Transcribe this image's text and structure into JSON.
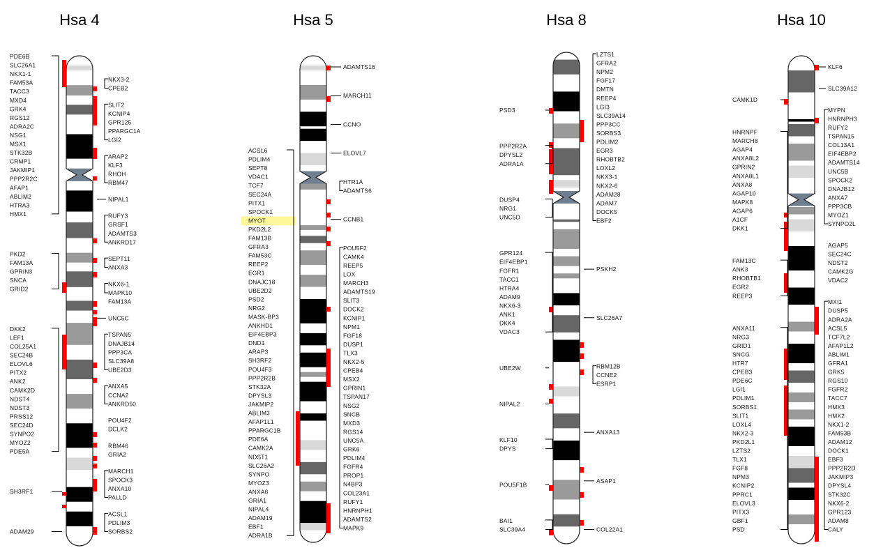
{
  "chromosomes": [
    {
      "name": "Hsa 4",
      "colors": {
        "hl": "#fff799",
        "mark": "#ff0000"
      },
      "cen": 0.243,
      "bands": [
        [
          0,
          0.02,
          "w"
        ],
        [
          0.02,
          0.03,
          "l"
        ],
        [
          0.03,
          0.06,
          "w"
        ],
        [
          0.06,
          0.081,
          "m"
        ],
        [
          0.081,
          0.1,
          "w"
        ],
        [
          0.1,
          0.12,
          "d"
        ],
        [
          0.12,
          0.16,
          "w"
        ],
        [
          0.16,
          0.21,
          "k"
        ],
        [
          0.21,
          0.23,
          "w"
        ],
        [
          0.23,
          0.25,
          "m"
        ],
        [
          0.25,
          0.275,
          "w"
        ],
        [
          0.275,
          0.318,
          "k"
        ],
        [
          0.318,
          0.34,
          "w"
        ],
        [
          0.34,
          0.372,
          "d"
        ],
        [
          0.372,
          0.402,
          "w"
        ],
        [
          0.402,
          0.422,
          "m"
        ],
        [
          0.422,
          0.44,
          "w"
        ],
        [
          0.44,
          0.472,
          "d"
        ],
        [
          0.472,
          0.5,
          "w"
        ],
        [
          0.5,
          0.52,
          "d"
        ],
        [
          0.52,
          0.545,
          "w"
        ],
        [
          0.545,
          0.59,
          "m"
        ],
        [
          0.59,
          0.62,
          "w"
        ],
        [
          0.62,
          0.66,
          "d"
        ],
        [
          0.66,
          0.69,
          "w"
        ],
        [
          0.69,
          0.72,
          "m"
        ],
        [
          0.72,
          0.75,
          "w"
        ],
        [
          0.75,
          0.8,
          "k"
        ],
        [
          0.8,
          0.82,
          "w"
        ],
        [
          0.82,
          0.845,
          "l"
        ],
        [
          0.845,
          0.88,
          "w"
        ],
        [
          0.88,
          0.91,
          "k"
        ],
        [
          0.91,
          0.93,
          "w"
        ],
        [
          0.93,
          0.96,
          "k"
        ],
        [
          0.96,
          1,
          "w"
        ]
      ],
      "left_labels": [
        "PDE6B",
        "SLC26A1",
        "NKX1-1",
        "FAM53A",
        "TACC3",
        "MXD4",
        "GRK4",
        "RGS12",
        "ADRA2C",
        "NSG1",
        "MSX1",
        "STK32B",
        "CRMP1",
        "JAKMIP1",
        "PPP2R2C",
        "AFAP1",
        "ABLIM2",
        "HTRA3",
        "HMX1",
        "PKD2",
        "FAM13A",
        "GPRIN3",
        "SNCA",
        "GRID2",
        "DKK2",
        "LEF1",
        "COL25A1",
        "SEC24B",
        "ELOVL6",
        "PITX2",
        "ANK2",
        "CAMK2D",
        "NDST4",
        "NDST3",
        "PRSS12",
        "SEC24D",
        "SYNPO2",
        "MYOZ2",
        "PDE5A",
        "SH3RF1",
        "ADAM29"
      ],
      "right_labels": [
        "NKX3-2",
        "CPEB2",
        "SLIT2",
        "KCNIP4",
        "GPR125",
        "PPARGC1A",
        "LGI2",
        "ARAP2",
        "KLF3",
        "RHOH",
        "RBM47",
        "NIPAL1",
        "RUFY3",
        "GRSF1",
        "ADAMTS3",
        "ANKRD17",
        "SEPT11",
        "ANXA3",
        "NKX6-1",
        "MAPK10",
        "FAM13A",
        "UNC5C",
        "TSPAN5",
        "DNAJB14",
        "PPP3CA",
        "SLC39A8",
        "UBE2D3",
        "ANXA5",
        "CCNA2",
        "ANKRD50",
        "POU4F2",
        "DCLK2",
        "RBM46",
        "GRIA2",
        "MARCH1",
        "SPOCK3",
        "ANXA10",
        "PALLD",
        "ACSL1",
        "PDLIM3",
        "SORBS2"
      ]
    },
    {
      "name": "Hsa 5",
      "colors": {
        "hl": "#fff799",
        "mark": "#ff0000"
      },
      "cen": 0.25,
      "bands": [
        [
          0,
          0.02,
          "w"
        ],
        [
          0.02,
          0.03,
          "l"
        ],
        [
          0.03,
          0.06,
          "w"
        ],
        [
          0.06,
          0.09,
          "m"
        ],
        [
          0.09,
          0.115,
          "w"
        ],
        [
          0.115,
          0.145,
          "k"
        ],
        [
          0.145,
          0.15,
          "w"
        ],
        [
          0.15,
          0.175,
          "k"
        ],
        [
          0.175,
          0.2,
          "w"
        ],
        [
          0.2,
          0.225,
          "l"
        ],
        [
          0.225,
          0.255,
          "w"
        ],
        [
          0.255,
          0.275,
          "m"
        ],
        [
          0.275,
          0.31,
          "w"
        ],
        [
          0.31,
          0.348,
          "w"
        ],
        [
          0.348,
          0.358,
          "m"
        ],
        [
          0.358,
          0.37,
          "w"
        ],
        [
          0.37,
          0.385,
          "d"
        ],
        [
          0.385,
          0.4,
          "w"
        ],
        [
          0.4,
          0.43,
          "m"
        ],
        [
          0.43,
          0.45,
          "w"
        ],
        [
          0.45,
          0.475,
          "m"
        ],
        [
          0.475,
          0.5,
          "w"
        ],
        [
          0.5,
          0.55,
          "k"
        ],
        [
          0.55,
          0.57,
          "w"
        ],
        [
          0.57,
          0.595,
          "k"
        ],
        [
          0.595,
          0.61,
          "w"
        ],
        [
          0.61,
          0.64,
          "k"
        ],
        [
          0.64,
          0.65,
          "w"
        ],
        [
          0.65,
          0.66,
          "m"
        ],
        [
          0.66,
          0.67,
          "w"
        ],
        [
          0.67,
          0.71,
          "k"
        ],
        [
          0.71,
          0.735,
          "w"
        ],
        [
          0.735,
          0.75,
          "k"
        ],
        [
          0.75,
          0.79,
          "w"
        ],
        [
          0.79,
          0.81,
          "l"
        ],
        [
          0.81,
          0.835,
          "w"
        ],
        [
          0.835,
          0.86,
          "d"
        ],
        [
          0.86,
          0.875,
          "w"
        ],
        [
          0.875,
          0.895,
          "m"
        ],
        [
          0.895,
          0.915,
          "w"
        ],
        [
          0.915,
          0.96,
          "k"
        ],
        [
          0.96,
          0.975,
          "l"
        ],
        [
          0.975,
          1,
          "w"
        ]
      ],
      "left_labels": [
        "ACSL6",
        "PDLIM4",
        "SEPT8",
        "VDAC1",
        "TCF7",
        "SEC24A",
        "PITX1",
        "SPOCK1",
        "MYOT",
        "PKD2L2",
        "FAM13B",
        "GFRA3",
        "FAM53C",
        "REEP2",
        "EGR1",
        "DNAJC18",
        "UBE2D2",
        "PSD2",
        "NRG2",
        "MASK-BP3",
        "ANKHD1",
        "EIF4EBP3",
        "DND1",
        "ARAP3",
        "SH3RF2",
        "POU4F3",
        "PPP2R2B",
        "STK32A",
        "DPYSL3",
        "JAKMIP2",
        "ABLIM3",
        "AFAP1L1",
        "PPARGC1B",
        "PDE6A",
        "CAMK2A",
        "NDST1",
        "SLC26A2",
        "SYNPO",
        "MYOZ3",
        "ANXA6",
        "GRIA1",
        "NIPAL4",
        "ADAM19",
        "EBF1",
        "ADRA1B"
      ],
      "right_labels": [
        "ADAMTS16",
        "MARCH11",
        "CCNO",
        "ELOVL7",
        "HTR1A",
        "ADAMTS6",
        "CCNB1",
        "POU5F2",
        "CAMK4",
        "REEP5",
        "LOX",
        "MARCH3",
        "ADAMTS19",
        "SLIT3",
        "DOCK2",
        "KCNIP1",
        "NPM1",
        "FGF18",
        "DUSP1",
        "TLX3",
        "NKX2-5",
        "CPEB4",
        "MSX2",
        "GPRIN1",
        "TSPAN17",
        "NSG2",
        "SNCB",
        "MXD3",
        "RGS14",
        "UNC5A",
        "GRK6",
        "PDLIM4",
        "FGFR4",
        "PROP1",
        "N4BP3",
        "COL23A1",
        "RUFY1",
        "HNRNPH1",
        "ADAMTS2",
        "MAPK9"
      ]
    },
    {
      "name": "Hsa 8",
      "colors": {
        "hl": "#fff799",
        "mark": "#ff0000"
      },
      "cen": 0.295,
      "bands": [
        [
          0,
          0.015,
          "w"
        ],
        [
          0.015,
          0.045,
          "d"
        ],
        [
          0.045,
          0.08,
          "w"
        ],
        [
          0.08,
          0.12,
          "k"
        ],
        [
          0.12,
          0.145,
          "w"
        ],
        [
          0.145,
          0.175,
          "m"
        ],
        [
          0.175,
          0.195,
          "w"
        ],
        [
          0.195,
          0.25,
          "d"
        ],
        [
          0.25,
          0.26,
          "w"
        ],
        [
          0.26,
          0.275,
          "l"
        ],
        [
          0.275,
          0.31,
          "w"
        ],
        [
          0.31,
          0.34,
          "w"
        ],
        [
          0.34,
          0.345,
          "d"
        ],
        [
          0.345,
          0.36,
          "w"
        ],
        [
          0.36,
          0.4,
          "m"
        ],
        [
          0.4,
          0.415,
          "w"
        ],
        [
          0.415,
          0.435,
          "m"
        ],
        [
          0.435,
          0.45,
          "w"
        ],
        [
          0.45,
          0.46,
          "m"
        ],
        [
          0.46,
          0.49,
          "w"
        ],
        [
          0.49,
          0.515,
          "k"
        ],
        [
          0.515,
          0.535,
          "w"
        ],
        [
          0.535,
          0.57,
          "d"
        ],
        [
          0.57,
          0.585,
          "w"
        ],
        [
          0.585,
          0.63,
          "k"
        ],
        [
          0.63,
          0.68,
          "w"
        ],
        [
          0.68,
          0.7,
          "l"
        ],
        [
          0.7,
          0.735,
          "w"
        ],
        [
          0.735,
          0.765,
          "d"
        ],
        [
          0.765,
          0.79,
          "w"
        ],
        [
          0.79,
          0.83,
          "k"
        ],
        [
          0.83,
          0.87,
          "w"
        ],
        [
          0.87,
          0.91,
          "m"
        ],
        [
          0.91,
          0.94,
          "w"
        ],
        [
          0.94,
          0.965,
          "d"
        ],
        [
          0.965,
          1,
          "w"
        ]
      ],
      "left_labels": [
        "PSD3",
        "PPP2R2A",
        "DPYSL2",
        "ADRA1A",
        "DUSP4",
        "NRG1",
        "UNC5D",
        "GPR124",
        "EIF4EBP1",
        "FGFR1",
        "TACC1",
        "HTRA4",
        "ADAM9",
        "NKX6-3",
        "ANK1",
        "DKK4",
        "VDAC3",
        "UBE2W",
        "NIPAL2",
        "KLF10",
        "DPYS",
        "POU5F1B",
        "BAI1",
        "SLC39A4"
      ],
      "right_labels": [
        "LZTS1",
        "GFRA2",
        "NPM2",
        "FGF17",
        "DMTN",
        "REEP4",
        "LGI3",
        "SLC39A14",
        "PPP3CC",
        "SORBS3",
        "PDLIM2",
        "EGR3",
        "RHOBTB2",
        "LOXL2",
        "NKX3-1",
        "NKX2-6",
        "ADAM28",
        "ADAM7",
        "DOCK5",
        "EBF2",
        "PSKH2",
        "SLC26A7",
        "RBM12B",
        "CCNE2",
        "ESRP1",
        "ANXA13",
        "ASAP1",
        "COL22A1"
      ]
    },
    {
      "name": "Hsa 10",
      "colors": {
        "hl": "#fff799",
        "mark": "#ff0000"
      },
      "cen": 0.295,
      "bands": [
        [
          0,
          0.03,
          "w"
        ],
        [
          0.03,
          0.075,
          "d"
        ],
        [
          0.075,
          0.13,
          "w"
        ],
        [
          0.13,
          0.135,
          "k"
        ],
        [
          0.135,
          0.14,
          "w"
        ],
        [
          0.14,
          0.165,
          "d"
        ],
        [
          0.165,
          0.18,
          "w"
        ],
        [
          0.18,
          0.215,
          "m"
        ],
        [
          0.215,
          0.225,
          "w"
        ],
        [
          0.225,
          0.25,
          "l"
        ],
        [
          0.25,
          0.275,
          "w"
        ],
        [
          0.275,
          0.31,
          "w"
        ],
        [
          0.31,
          0.325,
          "m"
        ],
        [
          0.325,
          0.335,
          "w"
        ],
        [
          0.335,
          0.36,
          "l"
        ],
        [
          0.36,
          0.39,
          "w"
        ],
        [
          0.39,
          0.44,
          "k"
        ],
        [
          0.44,
          0.475,
          "w"
        ],
        [
          0.475,
          0.51,
          "k"
        ],
        [
          0.51,
          0.545,
          "w"
        ],
        [
          0.545,
          0.565,
          "m"
        ],
        [
          0.565,
          0.59,
          "w"
        ],
        [
          0.59,
          0.63,
          "k"
        ],
        [
          0.63,
          0.645,
          "w"
        ],
        [
          0.645,
          0.67,
          "d"
        ],
        [
          0.67,
          0.69,
          "w"
        ],
        [
          0.69,
          0.71,
          "m"
        ],
        [
          0.71,
          0.725,
          "w"
        ],
        [
          0.725,
          0.745,
          "m"
        ],
        [
          0.745,
          0.76,
          "w"
        ],
        [
          0.76,
          0.8,
          "k"
        ],
        [
          0.8,
          0.82,
          "w"
        ],
        [
          0.82,
          0.845,
          "l"
        ],
        [
          0.845,
          0.875,
          "d"
        ],
        [
          0.875,
          0.885,
          "w"
        ],
        [
          0.885,
          0.91,
          "k"
        ],
        [
          0.91,
          0.94,
          "w"
        ],
        [
          0.94,
          0.96,
          "m"
        ],
        [
          0.96,
          1,
          "w"
        ]
      ],
      "left_labels": [
        "CAMK1D",
        "HNRNPF",
        "MARCH8",
        "AGAP4",
        "ANXA8L2",
        "GPRIN2",
        "ANXA8L1",
        "ANXA8",
        "AGAP10",
        "MAPK8",
        "AGAP6",
        "A1CF",
        "DKK1",
        "FAM13C",
        "ANK3",
        "RHOBTB1",
        "EGR2",
        "REEP3",
        "ANXA11",
        "NRG3",
        "GRID1",
        "SNCG",
        "HTR7",
        "CPEB3",
        "PDE6C",
        "LGI1",
        "PDLIM1",
        "SORBS1",
        "SLIT1",
        "LOXL4",
        "NKX2-3",
        "PKD2L1",
        "LZTS2",
        "TLX1",
        "FGF8",
        "NPM3",
        "KCNIP2",
        "PPRC1",
        "ELOVL3",
        "PITX3",
        "GBF1",
        "PSD"
      ],
      "right_labels": [
        "KLF6",
        "SLC39A12",
        "MYPN",
        "HNRNPH3",
        "RUFY2",
        "TSPAN15",
        "COL13A1",
        "EIF4EBP2",
        "ADAMTS14",
        "UNC5B",
        "SPOCK2",
        "DNAJB12",
        "ANXA7",
        "PPP3CB",
        "MYOZ1",
        "SYNPO2L",
        "AGAP5",
        "SEC24C",
        "NDST2",
        "CAMK2G",
        "VDAC2",
        "MXI1",
        "DUSP5",
        "ADRA2A",
        "ACSL5",
        "TCF7L2",
        "AFAP1L2",
        "ABLIM1",
        "GFRA1",
        "GRK5",
        "RGS10",
        "FGFR2",
        "TACC7",
        "HMX3",
        "HMX2",
        "NKX1-2",
        "FAM53B",
        "ADAM12",
        "DOCK1",
        "EBF3",
        "PPP2R2D",
        "JAKMIP3",
        "DPYSL4",
        "STK32C",
        "NKX6-2",
        "GPR123",
        "ADAM8",
        "CALY"
      ]
    }
  ]
}
